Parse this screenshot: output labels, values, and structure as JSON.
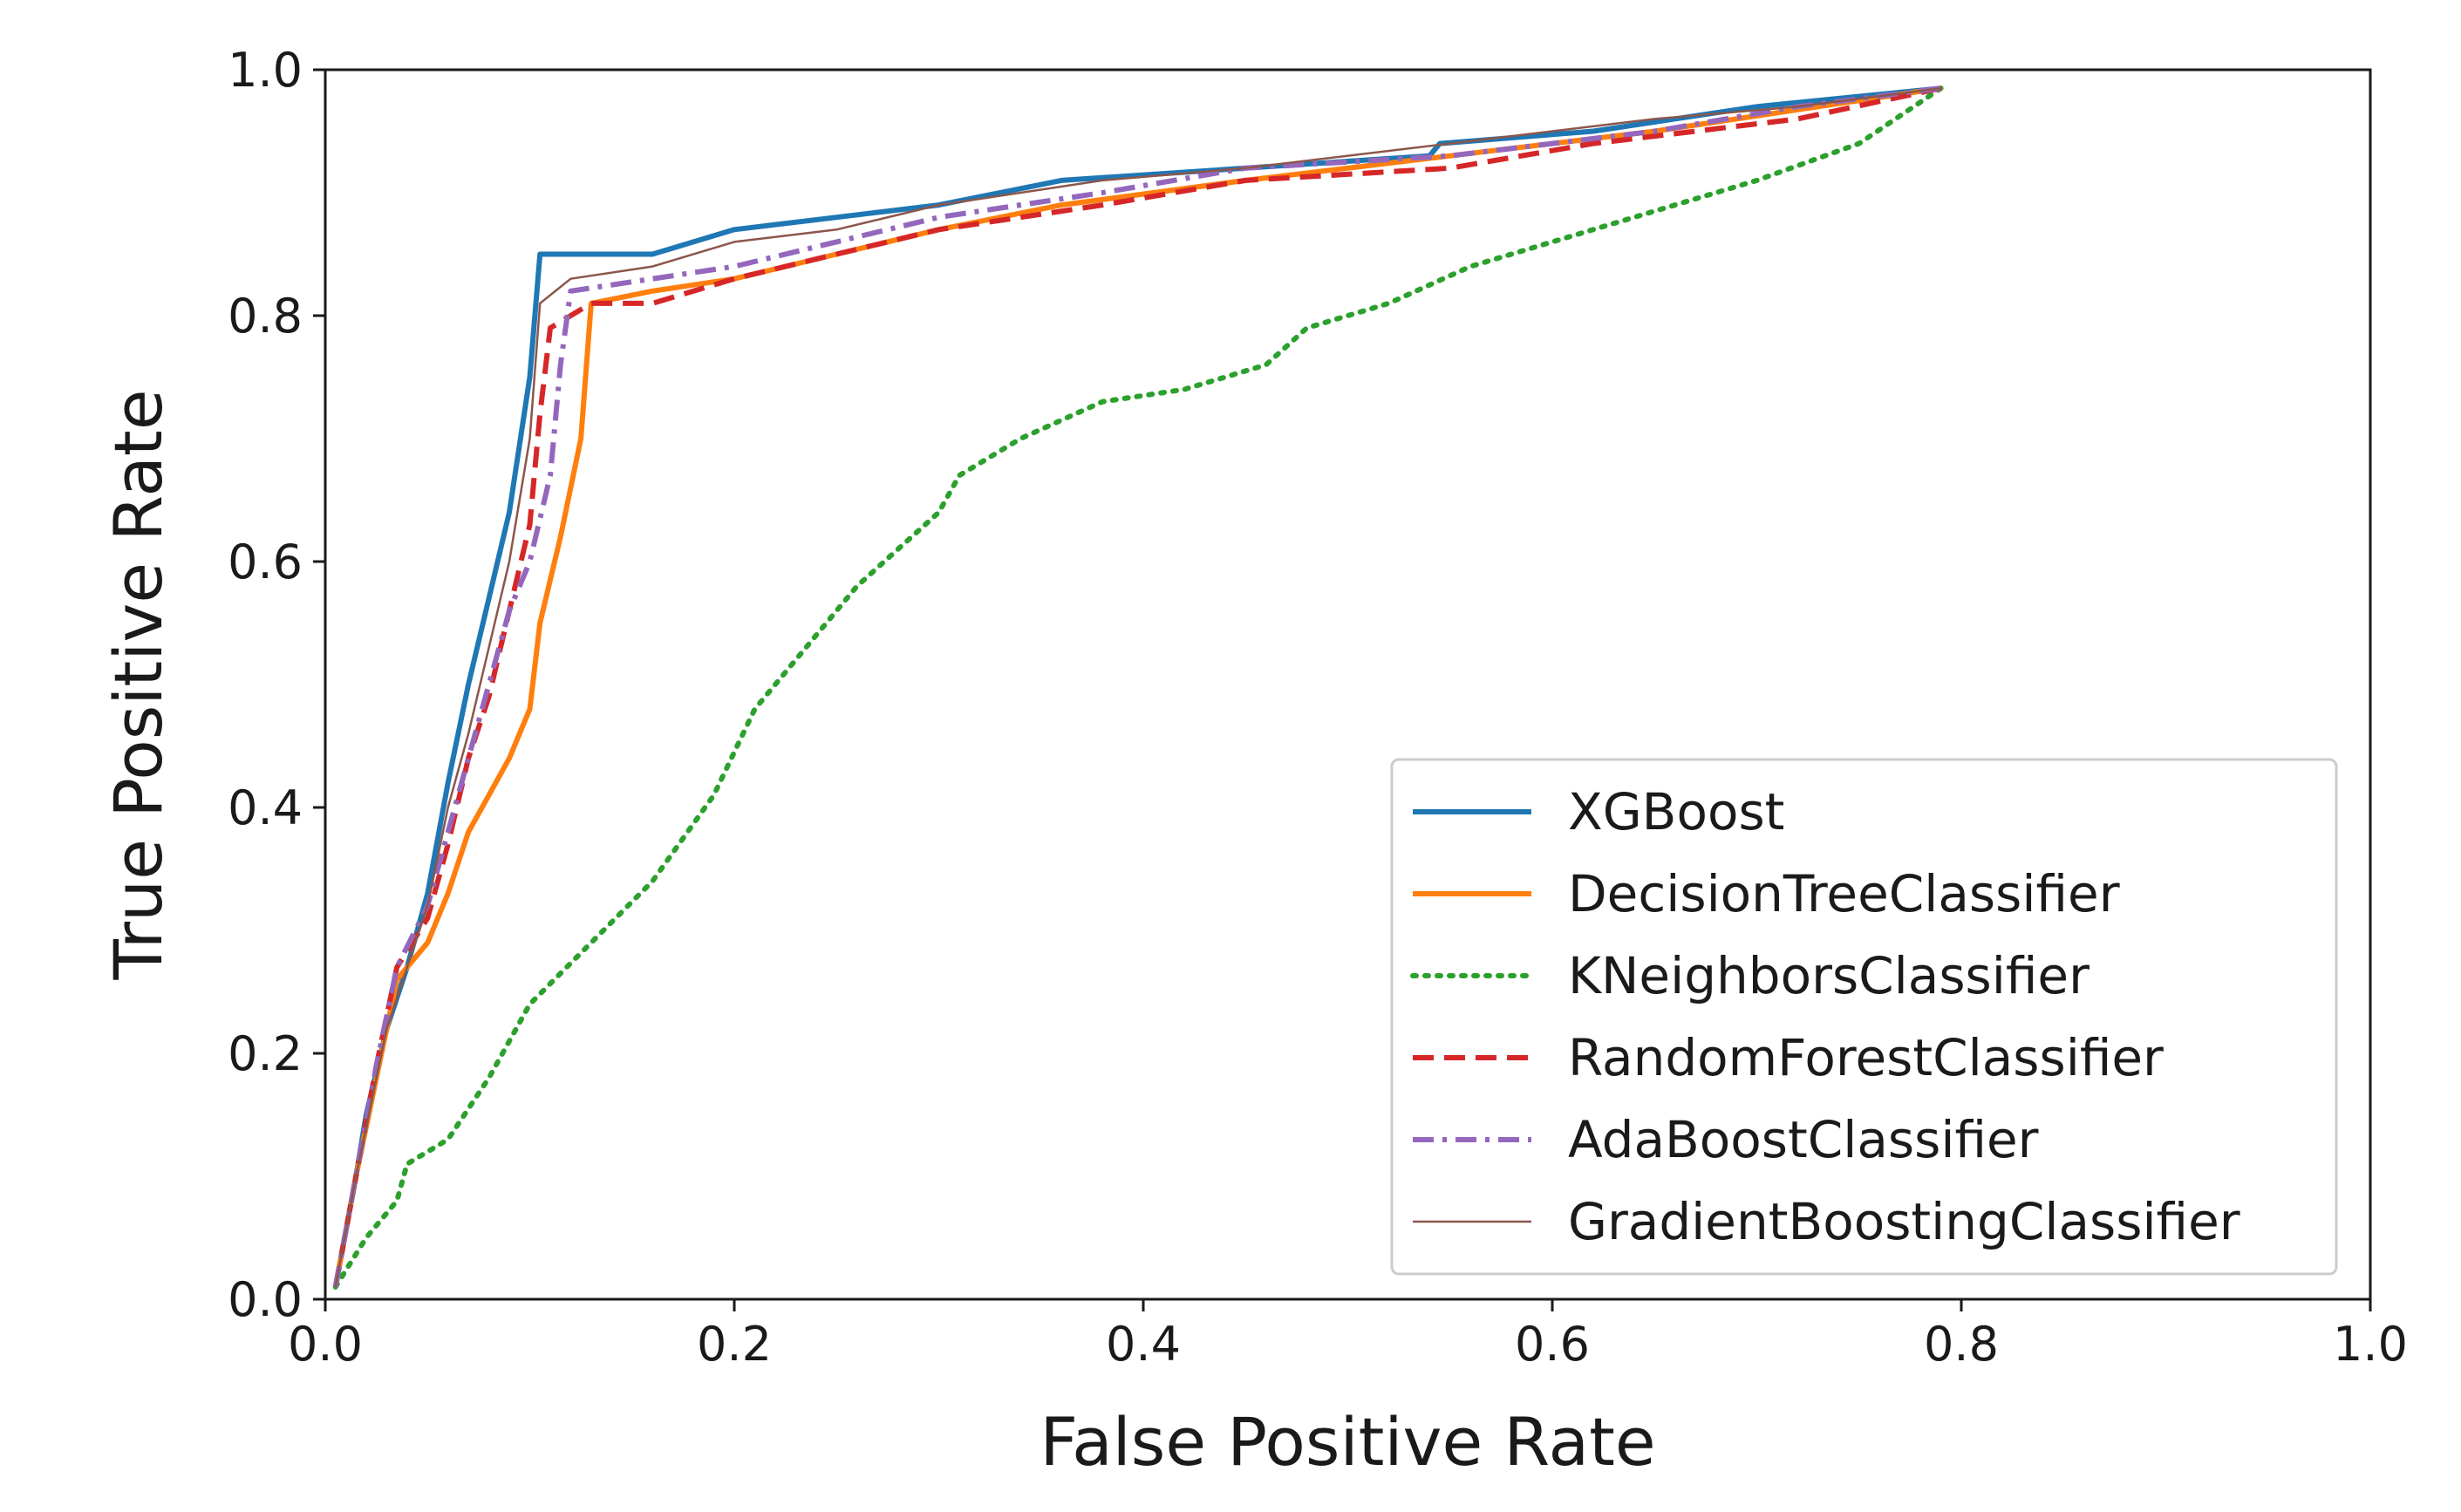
{
  "chart_data": {
    "type": "line",
    "xlabel": "False Positive Rate",
    "ylabel": "True Positive Rate",
    "xlim": [
      0.0,
      1.0
    ],
    "ylim": [
      0.0,
      1.0
    ],
    "xticks": [
      "0.0",
      "0.2",
      "0.4",
      "0.6",
      "0.8",
      "1.0"
    ],
    "yticks": [
      "0.0",
      "0.2",
      "0.4",
      "0.6",
      "0.8",
      "1.0"
    ],
    "grid": false,
    "legend_position": "lower-right",
    "series": [
      {
        "name": "XGBoost",
        "color": "#1f77b4",
        "style": "solid",
        "points": [
          [
            0.005,
            0.01
          ],
          [
            0.015,
            0.1
          ],
          [
            0.02,
            0.15
          ],
          [
            0.03,
            0.22
          ],
          [
            0.04,
            0.27
          ],
          [
            0.05,
            0.33
          ],
          [
            0.06,
            0.42
          ],
          [
            0.07,
            0.5
          ],
          [
            0.08,
            0.57
          ],
          [
            0.09,
            0.64
          ],
          [
            0.1,
            0.75
          ],
          [
            0.105,
            0.85
          ],
          [
            0.13,
            0.85
          ],
          [
            0.16,
            0.85
          ],
          [
            0.2,
            0.87
          ],
          [
            0.25,
            0.88
          ],
          [
            0.3,
            0.89
          ],
          [
            0.36,
            0.91
          ],
          [
            0.45,
            0.92
          ],
          [
            0.54,
            0.93
          ],
          [
            0.545,
            0.94
          ],
          [
            0.62,
            0.95
          ],
          [
            0.7,
            0.97
          ],
          [
            0.79,
            0.985
          ]
        ]
      },
      {
        "name": "DecisionTreeClassifier",
        "color": "#ff7f0e",
        "style": "solid",
        "points": [
          [
            0.005,
            0.01
          ],
          [
            0.015,
            0.1
          ],
          [
            0.025,
            0.18
          ],
          [
            0.035,
            0.26
          ],
          [
            0.05,
            0.29
          ],
          [
            0.06,
            0.33
          ],
          [
            0.07,
            0.38
          ],
          [
            0.08,
            0.41
          ],
          [
            0.09,
            0.44
          ],
          [
            0.1,
            0.48
          ],
          [
            0.105,
            0.55
          ],
          [
            0.115,
            0.62
          ],
          [
            0.125,
            0.7
          ],
          [
            0.13,
            0.81
          ],
          [
            0.16,
            0.82
          ],
          [
            0.2,
            0.83
          ],
          [
            0.25,
            0.85
          ],
          [
            0.3,
            0.87
          ],
          [
            0.36,
            0.89
          ],
          [
            0.45,
            0.91
          ],
          [
            0.55,
            0.93
          ],
          [
            0.65,
            0.95
          ],
          [
            0.73,
            0.97
          ],
          [
            0.79,
            0.985
          ]
        ]
      },
      {
        "name": "KNeighborsClassifier",
        "color": "#2ca02c",
        "style": "dotted",
        "points": [
          [
            0.005,
            0.01
          ],
          [
            0.02,
            0.05
          ],
          [
            0.035,
            0.08
          ],
          [
            0.04,
            0.11
          ],
          [
            0.06,
            0.13
          ],
          [
            0.08,
            0.18
          ],
          [
            0.1,
            0.24
          ],
          [
            0.13,
            0.29
          ],
          [
            0.16,
            0.34
          ],
          [
            0.19,
            0.41
          ],
          [
            0.21,
            0.48
          ],
          [
            0.23,
            0.52
          ],
          [
            0.26,
            0.58
          ],
          [
            0.3,
            0.64
          ],
          [
            0.31,
            0.67
          ],
          [
            0.34,
            0.7
          ],
          [
            0.38,
            0.73
          ],
          [
            0.42,
            0.74
          ],
          [
            0.46,
            0.76
          ],
          [
            0.48,
            0.79
          ],
          [
            0.52,
            0.81
          ],
          [
            0.56,
            0.84
          ],
          [
            0.6,
            0.86
          ],
          [
            0.66,
            0.89
          ],
          [
            0.7,
            0.91
          ],
          [
            0.75,
            0.94
          ],
          [
            0.79,
            0.985
          ]
        ]
      },
      {
        "name": "RandomForestClassifier",
        "color": "#d62728",
        "style": "dashed",
        "points": [
          [
            0.005,
            0.01
          ],
          [
            0.015,
            0.1
          ],
          [
            0.025,
            0.19
          ],
          [
            0.035,
            0.27
          ],
          [
            0.05,
            0.31
          ],
          [
            0.06,
            0.37
          ],
          [
            0.07,
            0.44
          ],
          [
            0.08,
            0.49
          ],
          [
            0.09,
            0.56
          ],
          [
            0.1,
            0.63
          ],
          [
            0.105,
            0.72
          ],
          [
            0.11,
            0.79
          ],
          [
            0.13,
            0.81
          ],
          [
            0.16,
            0.81
          ],
          [
            0.2,
            0.83
          ],
          [
            0.25,
            0.85
          ],
          [
            0.3,
            0.87
          ],
          [
            0.38,
            0.89
          ],
          [
            0.45,
            0.91
          ],
          [
            0.55,
            0.92
          ],
          [
            0.62,
            0.94
          ],
          [
            0.72,
            0.96
          ],
          [
            0.79,
            0.985
          ]
        ]
      },
      {
        "name": "AdaBoostClassifier",
        "color": "#9467bd",
        "style": "dashdot",
        "points": [
          [
            0.005,
            0.01
          ],
          [
            0.015,
            0.1
          ],
          [
            0.025,
            0.19
          ],
          [
            0.035,
            0.27
          ],
          [
            0.05,
            0.32
          ],
          [
            0.06,
            0.38
          ],
          [
            0.07,
            0.44
          ],
          [
            0.08,
            0.5
          ],
          [
            0.09,
            0.56
          ],
          [
            0.1,
            0.6
          ],
          [
            0.11,
            0.67
          ],
          [
            0.115,
            0.76
          ],
          [
            0.12,
            0.82
          ],
          [
            0.16,
            0.83
          ],
          [
            0.2,
            0.84
          ],
          [
            0.25,
            0.86
          ],
          [
            0.3,
            0.88
          ],
          [
            0.38,
            0.9
          ],
          [
            0.45,
            0.92
          ],
          [
            0.55,
            0.93
          ],
          [
            0.65,
            0.95
          ],
          [
            0.72,
            0.97
          ],
          [
            0.79,
            0.985
          ]
        ]
      },
      {
        "name": "GradientBoostingClassifier",
        "color": "#8c564b",
        "style": "thin",
        "points": [
          [
            0.005,
            0.01
          ],
          [
            0.015,
            0.1
          ],
          [
            0.03,
            0.22
          ],
          [
            0.04,
            0.27
          ],
          [
            0.05,
            0.32
          ],
          [
            0.06,
            0.4
          ],
          [
            0.07,
            0.46
          ],
          [
            0.08,
            0.53
          ],
          [
            0.09,
            0.6
          ],
          [
            0.1,
            0.7
          ],
          [
            0.105,
            0.81
          ],
          [
            0.12,
            0.83
          ],
          [
            0.16,
            0.84
          ],
          [
            0.2,
            0.86
          ],
          [
            0.25,
            0.87
          ],
          [
            0.3,
            0.89
          ],
          [
            0.38,
            0.91
          ],
          [
            0.45,
            0.92
          ],
          [
            0.55,
            0.94
          ],
          [
            0.65,
            0.96
          ],
          [
            0.72,
            0.97
          ],
          [
            0.79,
            0.985
          ]
        ]
      }
    ]
  }
}
